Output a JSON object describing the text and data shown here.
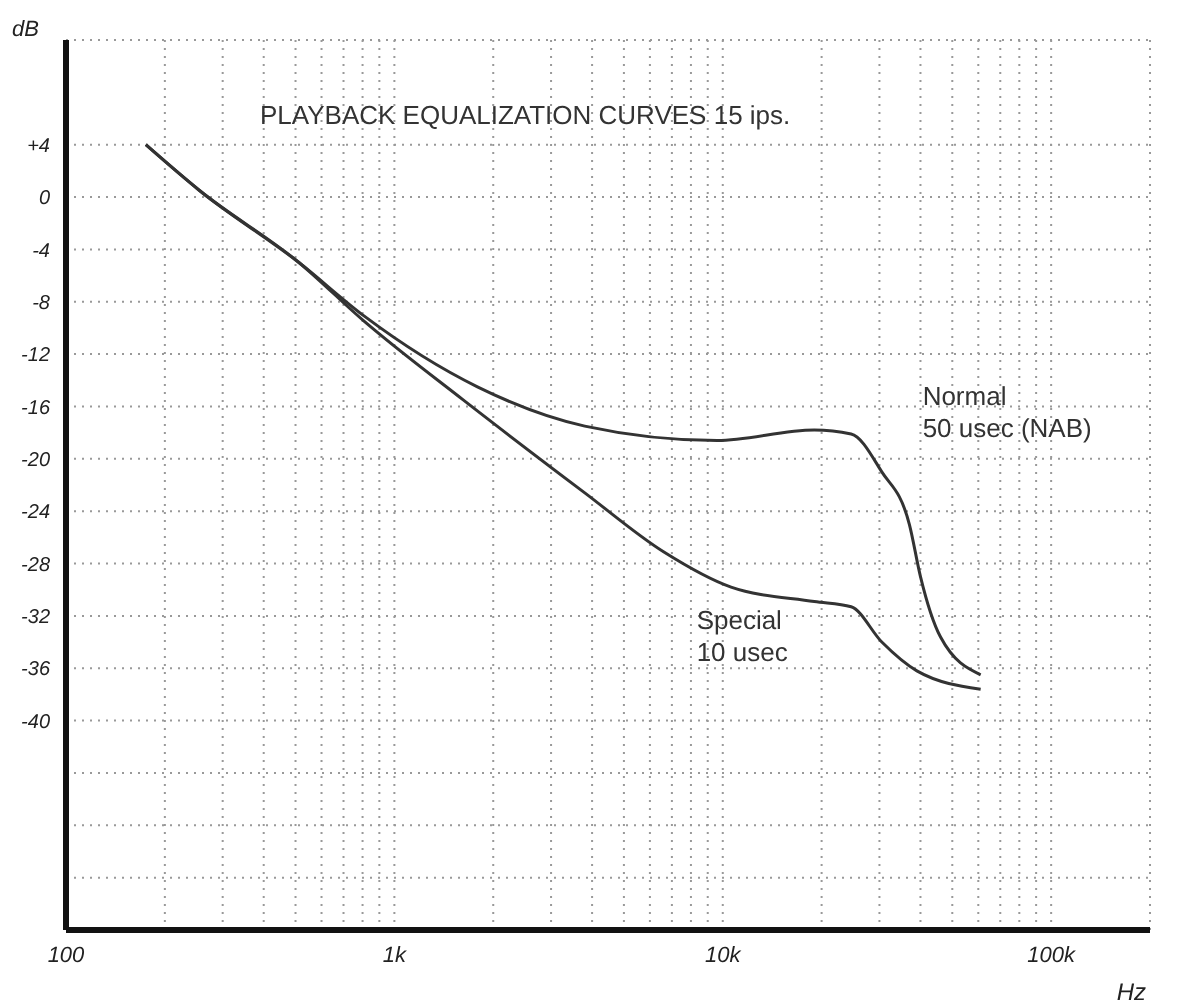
{
  "chart_data": {
    "type": "line",
    "title": "PLAYBACK EQUALIZATION CURVES 15 ips.",
    "xlabel": "Hz",
    "ylabel": "dB",
    "log": "x",
    "grid": true,
    "marker": "none",
    "line_style": "solid",
    "legend": false,
    "xlim": [
      100,
      200000
    ],
    "xticks": [
      {
        "value": 100,
        "label": "100"
      },
      {
        "value": 200,
        "label": null
      },
      {
        "value": 300,
        "label": null
      },
      {
        "value": 400,
        "label": null
      },
      {
        "value": 500,
        "label": null
      },
      {
        "value": 600,
        "label": null
      },
      {
        "value": 700,
        "label": null
      },
      {
        "value": 800,
        "label": null
      },
      {
        "value": 900,
        "label": null
      },
      {
        "value": 1000,
        "label": "1k"
      },
      {
        "value": 2000,
        "label": null
      },
      {
        "value": 3000,
        "label": null
      },
      {
        "value": 4000,
        "label": null
      },
      {
        "value": 5000,
        "label": null
      },
      {
        "value": 6000,
        "label": null
      },
      {
        "value": 7000,
        "label": null
      },
      {
        "value": 8000,
        "label": null
      },
      {
        "value": 9000,
        "label": null
      },
      {
        "value": 10000,
        "label": "10k"
      },
      {
        "value": 20000,
        "label": null
      },
      {
        "value": 30000,
        "label": null
      },
      {
        "value": 40000,
        "label": null
      },
      {
        "value": 50000,
        "label": null
      },
      {
        "value": 60000,
        "label": null
      },
      {
        "value": 70000,
        "label": null
      },
      {
        "value": 80000,
        "label": null
      },
      {
        "value": 90000,
        "label": null
      },
      {
        "value": 100000,
        "label": "100k"
      }
    ],
    "ylim": [
      -56,
      12
    ],
    "yticks": [
      {
        "value": -56,
        "label": null
      },
      {
        "value": -52,
        "label": null
      },
      {
        "value": -48,
        "label": null
      },
      {
        "value": -44,
        "label": null
      },
      -40,
      -36,
      -32,
      -28,
      -24,
      -20,
      -16,
      -12,
      -8,
      -4,
      0,
      {
        "value": 4,
        "label": "+4"
      }
    ],
    "series": [
      {
        "name": "Normal 50 usec (NAB)",
        "color": "#333333",
        "x": [
          175,
          255,
          512,
          810,
          1790,
          3800,
          9600,
          19000,
          24600,
          30500,
          37000,
          40000,
          46000,
          61000
        ],
        "values": [
          4,
          0.5,
          -5,
          -9.1,
          -14.5,
          -17.5,
          -18.6,
          -17.8,
          -18.1,
          -21,
          -25,
          -29,
          -33.6,
          -36.5
        ]
      },
      {
        "name": "Special 10 usec",
        "color": "#333333",
        "x": [
          175,
          255,
          512,
          810,
          1620,
          3800,
          6600,
          10600,
          19000,
          24600,
          30500,
          39000,
          61000
        ],
        "values": [
          4,
          0.5,
          -5,
          -9.5,
          -15.5,
          -22.6,
          -27.1,
          -29.8,
          -30.9,
          -31.3,
          -34,
          -36.2,
          -37.6
        ]
      }
    ]
  }
}
